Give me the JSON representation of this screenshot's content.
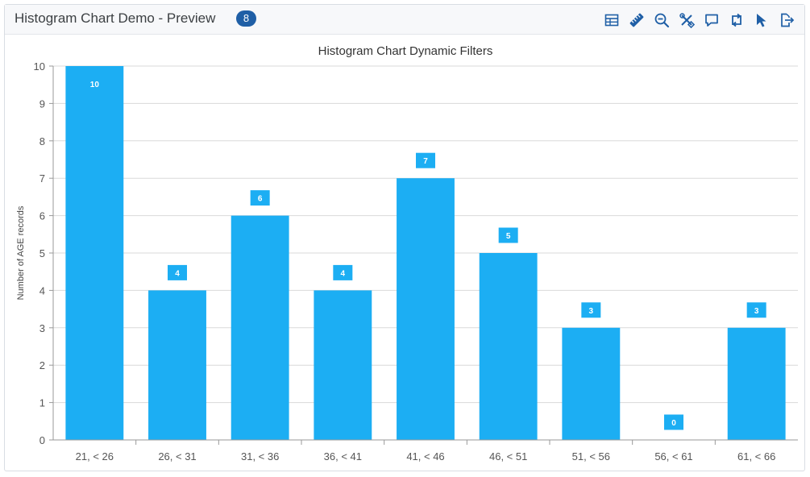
{
  "header": {
    "title": "Histogram Chart Demo - Preview",
    "badge": "8",
    "toolbar": [
      {
        "name": "table-icon"
      },
      {
        "name": "ruler-icon"
      },
      {
        "name": "zoom-out-icon"
      },
      {
        "name": "tools-icon"
      },
      {
        "name": "comment-icon"
      },
      {
        "name": "swap-icon"
      },
      {
        "name": "pointer-icon"
      },
      {
        "name": "export-icon"
      }
    ]
  },
  "colors": {
    "bar": "#1caef3",
    "text": "#555555",
    "grid": "#d9d9d9",
    "icon": "#1f5fa6"
  },
  "chart_data": {
    "type": "bar",
    "title": "Histogram Chart Dynamic Filters",
    "ylabel": "Number of AGE records",
    "xlabel": "",
    "categories": [
      "21, < 26",
      "26, < 31",
      "31, < 36",
      "36, < 41",
      "41, < 46",
      "46, < 51",
      "51, < 56",
      "56, < 61",
      "61, < 66"
    ],
    "values": [
      10,
      4,
      6,
      4,
      7,
      5,
      3,
      0,
      3
    ],
    "ylim": [
      0,
      10
    ],
    "yticks": [
      0,
      1,
      2,
      3,
      4,
      5,
      6,
      7,
      8,
      9,
      10
    ],
    "grid": true,
    "data_labels": true
  }
}
